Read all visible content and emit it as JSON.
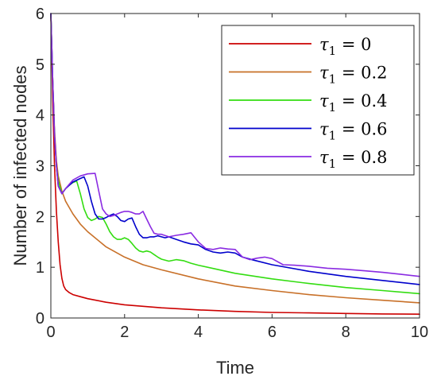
{
  "chart_data": {
    "type": "line",
    "xlabel": "Time",
    "ylabel": "Number of infected nodes",
    "xlim": [
      0,
      10
    ],
    "ylim": [
      0,
      6
    ],
    "x_ticks": [
      "0",
      "2",
      "4",
      "6",
      "8",
      "10"
    ],
    "y_ticks": [
      "0",
      "1",
      "2",
      "3",
      "4",
      "5",
      "6"
    ],
    "grid": false,
    "legend_position": "top-right",
    "series": [
      {
        "name": "τ1 = 0",
        "legend_symbol": "τ",
        "legend_subscript": "1",
        "legend_value": " = 0",
        "color": "#cc0000",
        "x": [
          0,
          0.05,
          0.1,
          0.15,
          0.2,
          0.25,
          0.3,
          0.35,
          0.4,
          0.5,
          0.6,
          0.8,
          1.0,
          1.5,
          2,
          3,
          4,
          5,
          6,
          7,
          8,
          9,
          10
        ],
        "y": [
          6.0,
          4.3,
          3.0,
          2.1,
          1.5,
          1.05,
          0.78,
          0.63,
          0.56,
          0.5,
          0.46,
          0.42,
          0.38,
          0.31,
          0.26,
          0.2,
          0.16,
          0.13,
          0.11,
          0.1,
          0.09,
          0.08,
          0.075
        ]
      },
      {
        "name": "τ1 = 0.2",
        "legend_symbol": "τ",
        "legend_subscript": "1",
        "legend_value": " = 0.2",
        "color": "#c87028",
        "x": [
          0,
          0.05,
          0.1,
          0.15,
          0.2,
          0.3,
          0.4,
          0.6,
          0.8,
          1.0,
          1.5,
          2,
          2.5,
          3,
          4,
          5,
          6,
          7,
          8,
          9,
          10
        ],
        "y": [
          6.0,
          4.7,
          3.7,
          3.1,
          2.8,
          2.5,
          2.3,
          2.05,
          1.85,
          1.7,
          1.4,
          1.2,
          1.05,
          0.95,
          0.77,
          0.63,
          0.54,
          0.46,
          0.4,
          0.35,
          0.3
        ]
      },
      {
        "name": "τ1 = 0.4",
        "legend_symbol": "τ",
        "legend_subscript": "1",
        "legend_value": " = 0.4",
        "color": "#33dd11",
        "x": [
          0,
          0.05,
          0.1,
          0.15,
          0.2,
          0.3,
          0.4,
          0.5,
          0.6,
          0.7,
          0.8,
          0.9,
          1.0,
          1.1,
          1.2,
          1.3,
          1.4,
          1.5,
          1.6,
          1.7,
          1.8,
          1.9,
          2.0,
          2.1,
          2.2,
          2.3,
          2.4,
          2.5,
          2.6,
          2.7,
          2.8,
          2.9,
          3.0,
          3.2,
          3.4,
          3.6,
          3.8,
          4.0,
          4.5,
          5.0,
          6.0,
          7.0,
          8.0,
          9.0,
          10.0
        ],
        "y": [
          6.0,
          4.7,
          3.6,
          3.0,
          2.7,
          2.45,
          2.55,
          2.62,
          2.67,
          2.7,
          2.45,
          2.15,
          1.98,
          1.92,
          1.95,
          2.0,
          1.98,
          1.85,
          1.7,
          1.6,
          1.55,
          1.55,
          1.58,
          1.55,
          1.47,
          1.38,
          1.32,
          1.3,
          1.32,
          1.3,
          1.25,
          1.2,
          1.16,
          1.12,
          1.15,
          1.13,
          1.08,
          1.04,
          0.96,
          0.88,
          0.77,
          0.68,
          0.6,
          0.54,
          0.48
        ]
      },
      {
        "name": "τ1 = 0.6",
        "legend_symbol": "τ",
        "legend_subscript": "1",
        "legend_value": " = 0.6",
        "color": "#0000cc",
        "x": [
          0,
          0.05,
          0.1,
          0.15,
          0.2,
          0.3,
          0.4,
          0.6,
          0.8,
          0.9,
          1.0,
          1.1,
          1.2,
          1.3,
          1.4,
          1.5,
          1.6,
          1.7,
          1.8,
          1.9,
          2.0,
          2.1,
          2.2,
          2.3,
          2.4,
          2.5,
          2.6,
          2.7,
          2.8,
          2.9,
          3.0,
          3.1,
          3.2,
          3.4,
          3.6,
          3.8,
          4.0,
          4.2,
          4.4,
          4.6,
          4.8,
          5.0,
          5.2,
          5.5,
          6.0,
          7.0,
          8.0,
          9.0,
          10.0
        ],
        "y": [
          6.0,
          4.7,
          3.6,
          3.0,
          2.6,
          2.45,
          2.55,
          2.68,
          2.75,
          2.78,
          2.6,
          2.3,
          2.05,
          1.95,
          1.95,
          1.98,
          2.02,
          2.05,
          2.0,
          1.92,
          1.9,
          1.95,
          1.97,
          1.8,
          1.65,
          1.58,
          1.58,
          1.6,
          1.6,
          1.62,
          1.6,
          1.58,
          1.6,
          1.55,
          1.5,
          1.46,
          1.44,
          1.35,
          1.3,
          1.28,
          1.3,
          1.28,
          1.2,
          1.14,
          1.05,
          0.92,
          0.82,
          0.74,
          0.66
        ]
      },
      {
        "name": "τ1 = 0.8",
        "legend_symbol": "τ",
        "legend_subscript": "1",
        "legend_value": " = 0.8",
        "color": "#8a2be2",
        "x": [
          0,
          0.05,
          0.1,
          0.15,
          0.2,
          0.3,
          0.4,
          0.6,
          0.8,
          1.0,
          1.2,
          1.3,
          1.4,
          1.5,
          1.6,
          1.7,
          1.8,
          1.9,
          2.0,
          2.1,
          2.2,
          2.3,
          2.4,
          2.5,
          2.6,
          2.7,
          2.8,
          2.9,
          3.0,
          3.2,
          3.4,
          3.6,
          3.8,
          4.0,
          4.2,
          4.4,
          4.6,
          4.8,
          5.0,
          5.2,
          5.4,
          5.6,
          5.8,
          6.0,
          6.3,
          6.6,
          7.0,
          7.5,
          8.0,
          8.5,
          9.0,
          9.5,
          10.0
        ],
        "y": [
          6.0,
          4.7,
          3.6,
          3.0,
          2.6,
          2.45,
          2.55,
          2.72,
          2.8,
          2.84,
          2.85,
          2.5,
          2.15,
          2.05,
          2.0,
          2.02,
          2.05,
          2.08,
          2.1,
          2.1,
          2.08,
          2.05,
          2.05,
          2.1,
          1.95,
          1.8,
          1.67,
          1.65,
          1.65,
          1.6,
          1.63,
          1.65,
          1.68,
          1.5,
          1.37,
          1.35,
          1.38,
          1.36,
          1.35,
          1.2,
          1.15,
          1.18,
          1.2,
          1.17,
          1.05,
          1.04,
          1.02,
          0.98,
          0.96,
          0.93,
          0.9,
          0.86,
          0.82
        ]
      }
    ]
  }
}
